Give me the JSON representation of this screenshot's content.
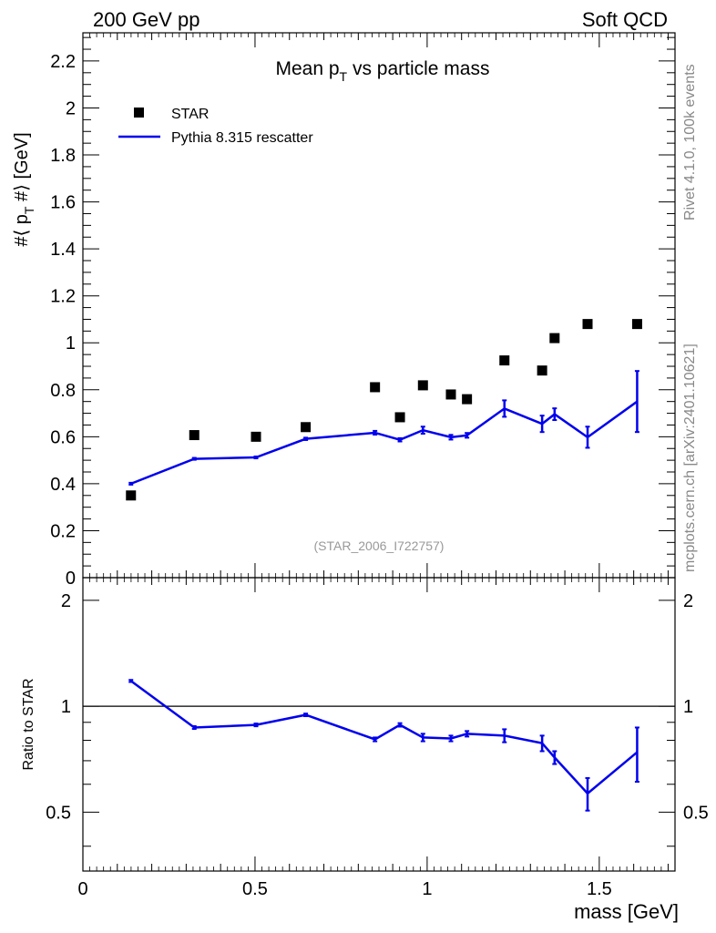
{
  "header": {
    "left": "200 GeV pp",
    "right": "Soft QCD"
  },
  "side_labels": {
    "rivet": "Rivet 4.1.0,  100k events",
    "mcplots": "mcplots.cern.ch [arXiv:2401.10621]"
  },
  "chart_data": {
    "type": "scatter",
    "title": "Mean p_T vs particle mass",
    "title_main": "Mean p",
    "title_sub": "T",
    "title_tail": " vs particle mass",
    "watermark": "(STAR_2006_I722757)",
    "xlabel": "mass [GeV]",
    "ylabel": "#⟨ p_T #⟩ [GeV]",
    "ylabel_main": "#⟨ p",
    "ylabel_sub": "T",
    "ylabel_tail": " #⟩ [GeV]",
    "ratio_ylabel": "Ratio to STAR",
    "xlim": [
      0,
      1.72
    ],
    "ylim": [
      0,
      2.32
    ],
    "ratio_ylim": [
      0.34,
      2.32
    ],
    "ratio_scale": "log",
    "x_ticks": [
      0,
      0.5,
      1,
      1.5
    ],
    "x_tick_labels": [
      "0",
      "0.5",
      "1",
      "1.5"
    ],
    "y_ticks": [
      0,
      0.2,
      0.4,
      0.6,
      0.8,
      1,
      1.2,
      1.4,
      1.6,
      1.8,
      2,
      2.2
    ],
    "y_tick_labels": [
      "0",
      "0.2",
      "0.4",
      "0.6",
      "0.8",
      "1",
      "1.2",
      "1.4",
      "1.6",
      "1.8",
      "2",
      "2.2"
    ],
    "ratio_ticks": [
      0.5,
      1,
      2
    ],
    "ratio_tick_labels": [
      "0.5",
      "1",
      "2"
    ],
    "legend": [
      {
        "label": "STAR",
        "marker": "square",
        "color": "#000000"
      },
      {
        "label": "Pythia 8.315 rescatter",
        "marker": "line",
        "color": "#0000ee"
      }
    ],
    "series": [
      {
        "name": "STAR",
        "x": [
          0.1396,
          0.3235,
          0.5028,
          0.6472,
          0.8485,
          0.921,
          0.9878,
          1.069,
          1.1157,
          1.2245,
          1.334,
          1.3702,
          1.466,
          1.61
        ],
        "y": [
          0.35,
          0.607,
          0.6,
          0.641,
          0.811,
          0.683,
          0.819,
          0.78,
          0.76,
          0.925,
          0.882,
          1.02,
          1.08,
          1.08
        ]
      },
      {
        "name": "Pythia 8.315 rescatter",
        "x": [
          0.1396,
          0.3235,
          0.5028,
          0.6472,
          0.8485,
          0.921,
          0.9878,
          1.069,
          1.1157,
          1.2245,
          1.334,
          1.3702,
          1.466,
          1.61
        ],
        "y": [
          0.4,
          0.506,
          0.512,
          0.591,
          0.617,
          0.587,
          0.628,
          0.598,
          0.606,
          0.72,
          0.655,
          0.696,
          0.598,
          0.75
        ],
        "yerr": [
          0.004,
          0.004,
          0.004,
          0.005,
          0.008,
          0.007,
          0.015,
          0.01,
          0.01,
          0.035,
          0.035,
          0.025,
          0.045,
          0.13
        ],
        "ratio": [
          1.18,
          0.87,
          0.885,
          0.945,
          0.805,
          0.885,
          0.815,
          0.81,
          0.835,
          0.825,
          0.785,
          0.715,
          0.565,
          0.74
        ],
        "ratio_err": [
          0.008,
          0.008,
          0.008,
          0.008,
          0.01,
          0.01,
          0.02,
          0.015,
          0.015,
          0.035,
          0.04,
          0.03,
          0.06,
          0.13
        ]
      }
    ]
  }
}
